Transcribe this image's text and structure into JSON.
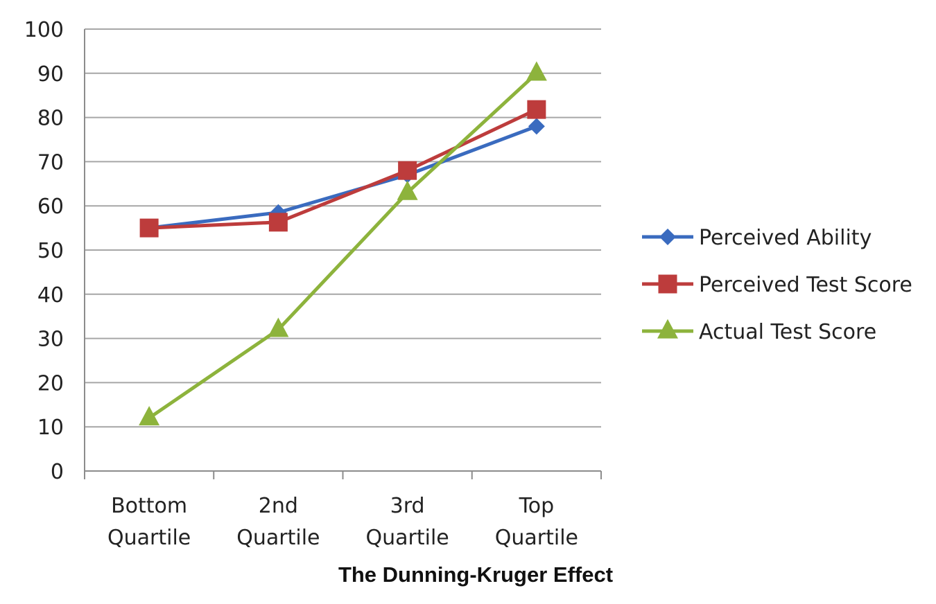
{
  "caption": "The Dunning-Kruger Effect",
  "chart_data": {
    "type": "line",
    "title": "",
    "xlabel": "",
    "ylabel": "",
    "ylim": [
      0,
      100
    ],
    "yticks": [
      0,
      10,
      20,
      30,
      40,
      50,
      60,
      70,
      80,
      90,
      100
    ],
    "grid": true,
    "legend_position": "right",
    "categories": [
      [
        "Bottom",
        "Quartile"
      ],
      [
        "2nd",
        "Quartile"
      ],
      [
        "3rd",
        "Quartile"
      ],
      [
        "Top",
        "Quartile"
      ]
    ],
    "series": [
      {
        "name": "Perceived Ability",
        "values": [
          55,
          58.5,
          67,
          78
        ],
        "color": "#3a6bbf",
        "marker": "diamond"
      },
      {
        "name": "Perceived Test Score",
        "values": [
          55,
          56.3,
          68,
          81.8
        ],
        "color": "#bd3c3c",
        "marker": "square"
      },
      {
        "name": "Actual Test Score",
        "values": [
          12,
          32,
          63,
          90
        ],
        "color": "#8db33c",
        "marker": "triangle"
      }
    ]
  }
}
